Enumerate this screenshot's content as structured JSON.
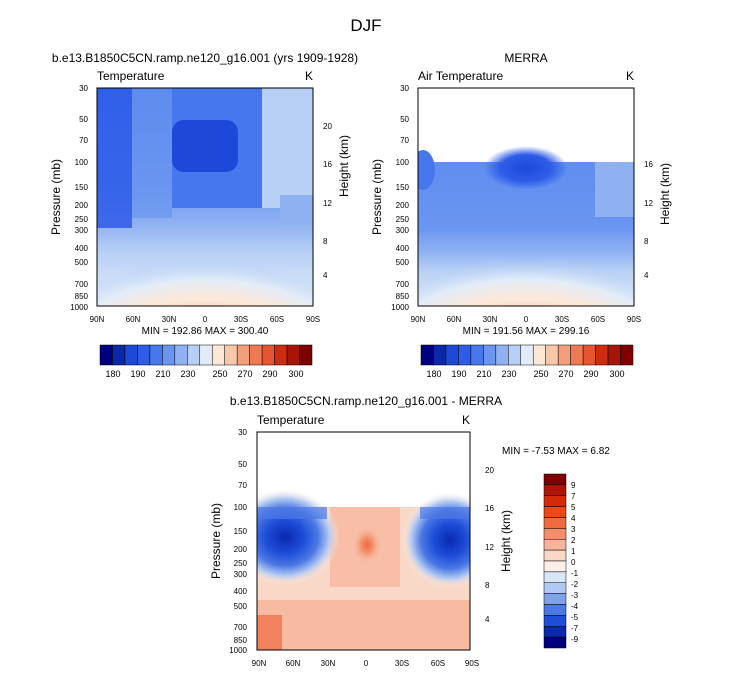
{
  "page_title": "DJF",
  "colors": {
    "background": "#ffffff",
    "axis": "#000000",
    "blank_region": "#ffffff"
  },
  "chart_data": [
    {
      "type": "heatmap",
      "subplot": "model",
      "title": "b.e13.B1850C5CN.ramp.ne120_g16.001 (yrs 1909-1928)",
      "left_label": "Temperature",
      "units": "K",
      "ylabel": "Pressure (mb)",
      "ylabel_right": "Height (km)",
      "x_ticks": [
        "90N",
        "60N",
        "30N",
        "0",
        "30S",
        "60S",
        "90S"
      ],
      "y_ticks": [
        "30",
        "50",
        "70",
        "100",
        "150",
        "200",
        "250",
        "300",
        "400",
        "500",
        "700",
        "850",
        "1000"
      ],
      "y_ticks_right": [
        "20",
        "16",
        "12",
        "8",
        "4"
      ],
      "stats": "MIN = 192.86  MAX = 300.40",
      "min": 192.86,
      "max": 300.4
    },
    {
      "type": "heatmap",
      "subplot": "obs",
      "title": "MERRA",
      "left_label": "Air Temperature",
      "units": "K",
      "ylabel": "Pressure (mb)",
      "ylabel_right": "Height (km)",
      "x_ticks": [
        "90N",
        "60N",
        "30N",
        "0",
        "30S",
        "60S",
        "90S"
      ],
      "y_ticks": [
        "30",
        "50",
        "70",
        "100",
        "150",
        "200",
        "250",
        "300",
        "400",
        "500",
        "700",
        "850",
        "1000"
      ],
      "y_ticks_right": [
        "16",
        "12",
        "8",
        "4"
      ],
      "stats": "MIN = 191.56  MAX = 299.16",
      "min": 191.56,
      "max": 299.16,
      "data_top_mb": 100
    },
    {
      "type": "heatmap",
      "subplot": "diff",
      "title": "b.e13.B1850C5CN.ramp.ne120_g16.001 - MERRA",
      "left_label": "Temperature",
      "units": "K",
      "ylabel": "Pressure (mb)",
      "ylabel_right": "Height (km)",
      "x_ticks": [
        "90N",
        "60N",
        "30N",
        "0",
        "30S",
        "60S",
        "90S"
      ],
      "y_ticks": [
        "30",
        "50",
        "70",
        "100",
        "150",
        "200",
        "250",
        "300",
        "400",
        "500",
        "700",
        "850",
        "1000"
      ],
      "y_ticks_right": [
        "20",
        "16",
        "12",
        "8",
        "4"
      ],
      "stats": "MIN =  -7.53  MAX =   6.82",
      "min": -7.53,
      "max": 6.82,
      "data_top_mb": 100
    }
  ],
  "colorbar_abs": {
    "labels": [
      "180",
      "190",
      "210",
      "230",
      "250",
      "270",
      "290",
      "300"
    ],
    "colors": [
      "#00007f",
      "#0a28a8",
      "#1e48d8",
      "#2e5ce8",
      "#4677ec",
      "#6a95f0",
      "#8fb1f2",
      "#b7cff5",
      "#e2ecf8",
      "#fde8d8",
      "#f8c6a8",
      "#f2a07c",
      "#ee7a55",
      "#e85430",
      "#d02a10",
      "#a81408",
      "#7f0000"
    ]
  },
  "colorbar_diff": {
    "labels": [
      "9",
      "7",
      "5",
      "4",
      "3",
      "2",
      "1",
      "0",
      "-1",
      "-2",
      "-3",
      "-4",
      "-5",
      "-7",
      "-9"
    ],
    "colors": [
      "#7f0000",
      "#b01404",
      "#d42a0a",
      "#ec4818",
      "#f06a40",
      "#f28e68",
      "#f6b498",
      "#fad8c8",
      "#fdf0e8",
      "#d8e6f8",
      "#b0c8f2",
      "#7fa2ec",
      "#4c78e4",
      "#1e4ed8",
      "#0a28b0",
      "#00007f"
    ]
  }
}
